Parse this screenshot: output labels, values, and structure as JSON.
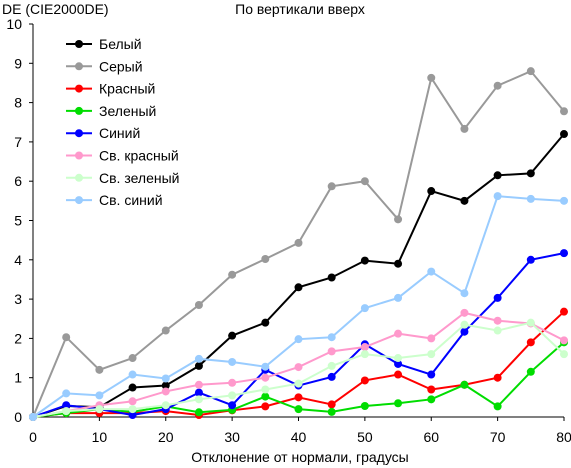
{
  "chart_data": {
    "type": "line",
    "title": "По вертикали вверх",
    "ylabel": "DE (CIE2000DE)",
    "xlabel": "Отклонение от нормали, градусы",
    "x": [
      0,
      5,
      10,
      15,
      20,
      25,
      30,
      35,
      40,
      45,
      50,
      55,
      60,
      65,
      70,
      75,
      80
    ],
    "xlim": [
      0,
      80
    ],
    "ylim": [
      0,
      10
    ],
    "xticks": [
      0,
      10,
      20,
      30,
      40,
      50,
      60,
      70,
      80
    ],
    "yticks": [
      0,
      1,
      2,
      3,
      4,
      5,
      6,
      7,
      8,
      9,
      10
    ],
    "grid": false,
    "legend": "top-left",
    "series": [
      {
        "name": "Белый",
        "color": "#000000",
        "values": [
          0,
          0.28,
          0.25,
          0.75,
          0.8,
          1.3,
          2.07,
          2.4,
          3.3,
          3.55,
          3.98,
          3.9,
          5.75,
          5.5,
          6.15,
          6.2,
          7.2
        ]
      },
      {
        "name": "Серый",
        "color": "#999999",
        "values": [
          0,
          2.03,
          1.2,
          1.5,
          2.2,
          2.85,
          3.62,
          4.02,
          4.43,
          5.87,
          6.0,
          5.03,
          8.63,
          7.33,
          8.43,
          8.8,
          7.78
        ]
      },
      {
        "name": "Красный",
        "color": "#ff0000",
        "values": [
          0,
          0.1,
          0.1,
          0.1,
          0.15,
          0.05,
          0.17,
          0.27,
          0.5,
          0.32,
          0.93,
          1.08,
          0.7,
          0.82,
          1.0,
          1.9,
          2.68
        ]
      },
      {
        "name": "Зеленый",
        "color": "#00dd00",
        "values": [
          0,
          0.1,
          0.2,
          0.13,
          0.27,
          0.12,
          0.18,
          0.52,
          0.2,
          0.13,
          0.28,
          0.35,
          0.45,
          0.82,
          0.27,
          1.15,
          1.9
        ]
      },
      {
        "name": "Синий",
        "color": "#0000ff",
        "values": [
          0,
          0.3,
          0.2,
          0.05,
          0.2,
          0.62,
          0.3,
          1.2,
          0.8,
          1.02,
          1.85,
          1.35,
          1.08,
          2.17,
          3.03,
          4.0,
          4.17
        ]
      },
      {
        "name": "Св. красный",
        "color": "#ff99cc",
        "values": [
          0,
          0.15,
          0.3,
          0.4,
          0.65,
          0.82,
          0.87,
          1.0,
          1.27,
          1.67,
          1.78,
          2.12,
          2.0,
          2.65,
          2.45,
          2.38,
          1.95
        ]
      },
      {
        "name": "Св. зеленый",
        "color": "#ccffcc",
        "values": [
          0,
          0.15,
          0.2,
          0.2,
          0.3,
          0.45,
          0.55,
          0.7,
          0.85,
          1.3,
          1.6,
          1.5,
          1.6,
          2.35,
          2.2,
          2.4,
          1.6
        ]
      },
      {
        "name": "Св. синий",
        "color": "#99ccff",
        "values": [
          0,
          0.6,
          0.55,
          1.08,
          0.98,
          1.48,
          1.4,
          1.28,
          1.98,
          2.03,
          2.77,
          3.03,
          3.7,
          3.15,
          5.62,
          5.55,
          5.5
        ]
      }
    ]
  }
}
